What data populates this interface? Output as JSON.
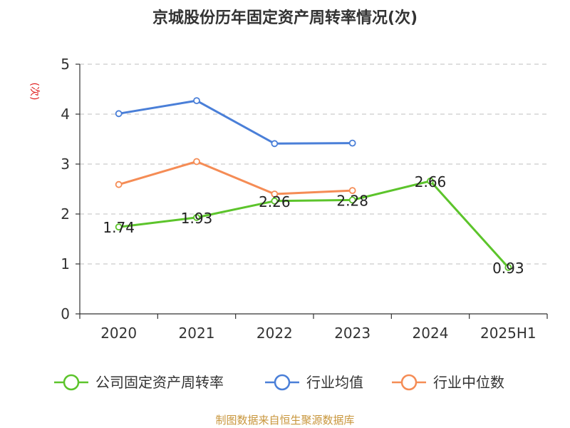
{
  "chart_data": {
    "type": "line",
    "title": "京城股份历年固定资产周转率情况(次)",
    "ylabel": "(次)",
    "categories": [
      "2020",
      "2021",
      "2022",
      "2023",
      "2024",
      "2025H1"
    ],
    "ylim": [
      0,
      5
    ],
    "yticks": [
      0,
      1,
      2,
      3,
      4,
      5
    ],
    "grid": true,
    "legend_position": "bottom",
    "series": [
      {
        "name": "公司固定资产周转率",
        "color": "#5cc42b",
        "values": [
          1.74,
          1.93,
          2.26,
          2.28,
          2.66,
          0.93
        ],
        "labels": [
          "1.74",
          "1.93",
          "2.26",
          "2.28",
          "2.66",
          "0.93"
        ]
      },
      {
        "name": "行业均值",
        "color": "#4a7fd8",
        "values": [
          4.01,
          4.27,
          3.41,
          3.42,
          null,
          null
        ]
      },
      {
        "name": "行业中位数",
        "color": "#f58c55",
        "values": [
          2.59,
          3.05,
          2.4,
          2.47,
          null,
          null
        ]
      }
    ]
  },
  "source": "制图数据来自恒生聚源数据库"
}
